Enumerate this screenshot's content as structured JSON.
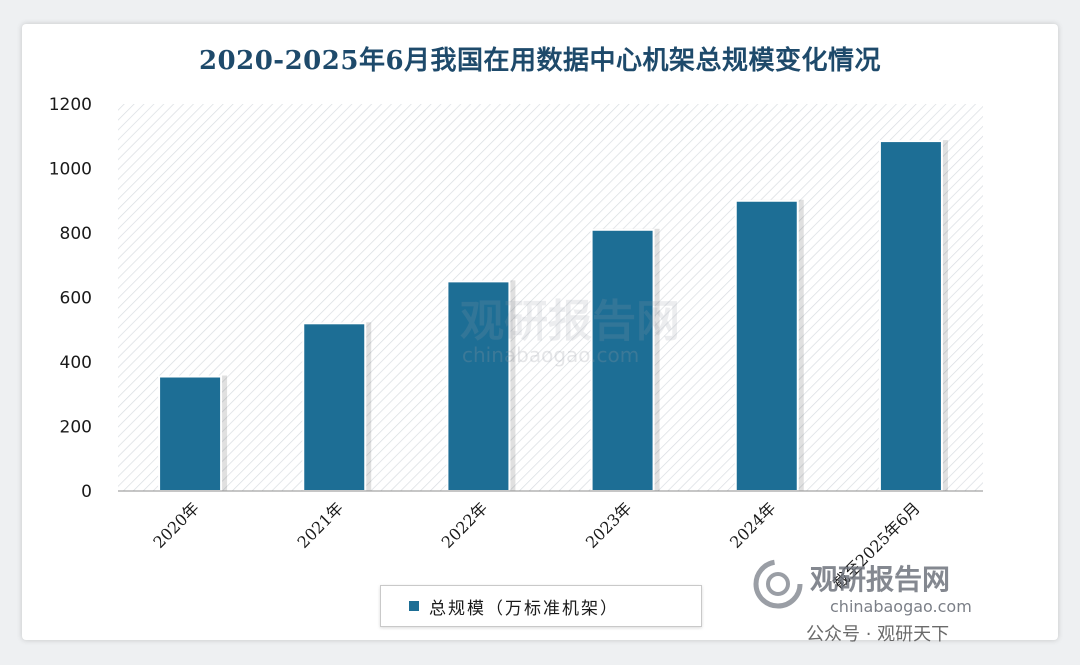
{
  "chart_data": {
    "type": "bar",
    "title": "2020-2025年6月我国在用数据中心机架总规模变化情况",
    "categories": [
      "2020年",
      "2021年",
      "2022年",
      "2023年",
      "2024年",
      "截至2025年6月"
    ],
    "series": [
      {
        "name": "总规模（万标准机架）",
        "values": [
          355,
          520,
          650,
          810,
          900,
          1085
        ]
      }
    ],
    "ylim": [
      0,
      1200
    ],
    "yticks": [
      0,
      200,
      400,
      600,
      800,
      1000,
      1200
    ],
    "grid": false,
    "legend_position": "bottom",
    "bar_color": "#1d6e95"
  },
  "watermark": {
    "brand": "观研报告网",
    "url": "chinabaogao.com",
    "account": "公众号 · 观研天下"
  }
}
